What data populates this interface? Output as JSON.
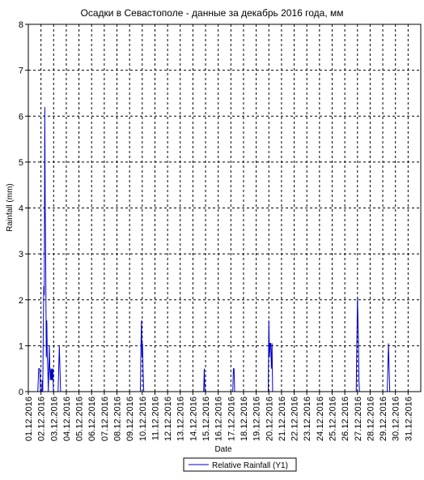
{
  "chart_data": {
    "type": "line",
    "title": "Осадки в Севастополе - данные за декабрь 2016 года, мм",
    "xlabel": "Date",
    "ylabel": "Rainfall (mm)",
    "ylim": [
      0,
      8
    ],
    "yticks": [
      "0",
      "1",
      "2",
      "3",
      "4",
      "5",
      "6",
      "7",
      "8"
    ],
    "x_range_days": [
      1,
      32
    ],
    "xticks": [
      "01.12.2016",
      "02.12.2016",
      "03.12.2016",
      "04.12.2016",
      "05.12.2016",
      "06.12.2016",
      "07.12.2016",
      "08.12.2016",
      "09.12.2016",
      "10.12.2016",
      "11.12.2016",
      "12.12.2016",
      "13.12.2016",
      "14.12.2016",
      "15.12.2016",
      "16.12.2016",
      "17.12.2016",
      "18.12.2016",
      "19.12.2016",
      "20.12.2016",
      "21.12.2016",
      "22.12.2016",
      "23.12.2016",
      "24.12.2016",
      "25.12.2016",
      "26.12.2016",
      "27.12.2016",
      "28.12.2016",
      "29.12.2016",
      "30.12.2016",
      "31.12.2016"
    ],
    "grid": true,
    "legend_position": "bottom-center",
    "series": [
      {
        "name": "Relative Rainfall (Y1)",
        "color": "#0000cc",
        "points": [
          [
            1.75,
            0
          ],
          [
            1.82,
            0.5
          ],
          [
            1.9,
            0.5
          ],
          [
            1.96,
            0
          ],
          [
            2.06,
            0
          ],
          [
            2.1,
            0.25
          ],
          [
            2.14,
            0
          ],
          [
            2.18,
            1.25
          ],
          [
            2.22,
            2.3
          ],
          [
            2.26,
            2.1
          ],
          [
            2.3,
            6.2
          ],
          [
            2.34,
            3.85
          ],
          [
            2.38,
            2.55
          ],
          [
            2.42,
            0.75
          ],
          [
            2.46,
            1.55
          ],
          [
            2.5,
            0.75
          ],
          [
            2.54,
            0.5
          ],
          [
            2.58,
            0
          ],
          [
            2.62,
            0.5
          ],
          [
            2.66,
            1.0
          ],
          [
            2.7,
            0.5
          ],
          [
            2.74,
            0.25
          ],
          [
            2.78,
            0.5
          ],
          [
            2.82,
            0.25
          ],
          [
            2.86,
            0.5
          ],
          [
            2.9,
            0.25
          ],
          [
            2.94,
            0.5
          ],
          [
            2.98,
            0
          ],
          [
            3.35,
            0
          ],
          [
            3.45,
            1.0
          ],
          [
            3.55,
            0
          ],
          [
            9.85,
            0
          ],
          [
            9.9,
            1.0
          ],
          [
            9.94,
            1.55
          ],
          [
            9.98,
            0.75
          ],
          [
            10.02,
            1.05
          ],
          [
            10.06,
            0.5
          ],
          [
            10.12,
            0
          ],
          [
            14.85,
            0
          ],
          [
            14.9,
            0.5
          ],
          [
            14.95,
            0
          ],
          [
            17.15,
            0
          ],
          [
            17.2,
            0.5
          ],
          [
            17.25,
            0.5
          ],
          [
            17.3,
            0
          ],
          [
            19.95,
            0
          ],
          [
            20.0,
            1.55
          ],
          [
            20.05,
            0.75
          ],
          [
            20.1,
            1.05
          ],
          [
            20.15,
            1.05
          ],
          [
            20.2,
            0.5
          ],
          [
            20.25,
            1.05
          ],
          [
            20.3,
            0
          ],
          [
            26.9,
            0
          ],
          [
            26.95,
            1.05
          ],
          [
            27.0,
            2.05
          ],
          [
            27.04,
            1.55
          ],
          [
            27.08,
            1.0
          ],
          [
            27.12,
            0.25
          ],
          [
            27.16,
            0
          ],
          [
            29.35,
            0
          ],
          [
            29.4,
            0.5
          ],
          [
            29.45,
            1.05
          ],
          [
            29.5,
            0.5
          ],
          [
            29.55,
            0
          ]
        ]
      }
    ]
  }
}
